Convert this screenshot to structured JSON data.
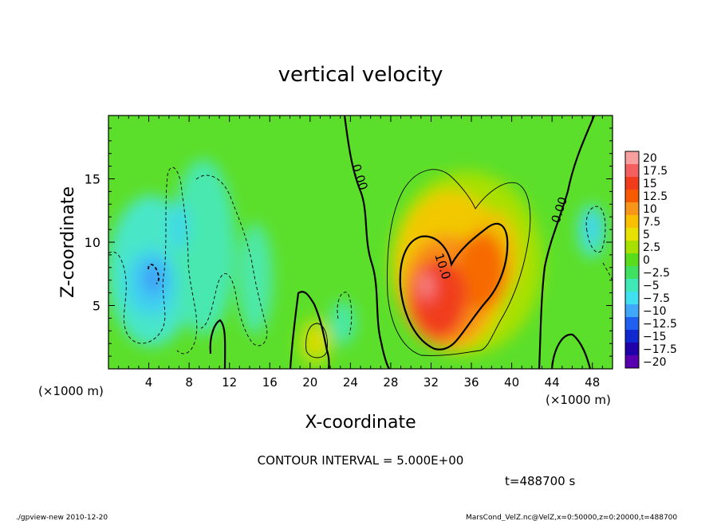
{
  "chart_data": {
    "type": "heatmap",
    "title": "vertical velocity",
    "xlabel": "X-coordinate",
    "ylabel": "Z-coordinate",
    "x_unit": "(×1000 m)",
    "x_unit_right": "(×1000 m)",
    "xlim": [
      0,
      50
    ],
    "ylim": [
      0,
      20
    ],
    "x_ticks": [
      "4",
      "8",
      "12",
      "16",
      "20",
      "24",
      "28",
      "32",
      "36",
      "40",
      "44",
      "48"
    ],
    "x_tick_values": [
      4,
      8,
      12,
      16,
      20,
      24,
      28,
      32,
      36,
      40,
      44,
      48
    ],
    "y_ticks": [
      "5",
      "10",
      "15"
    ],
    "y_tick_values": [
      5,
      10,
      15
    ],
    "contour_labels": [
      "0.00",
      "10.0",
      "0.00"
    ],
    "colorbar": {
      "labels": [
        "20",
        "17.5",
        "15",
        "12.5",
        "10",
        "7.5",
        "5",
        "2.5",
        "0",
        "−2.5",
        "−5",
        "−7.5",
        "−10",
        "−12.5",
        "−15",
        "−17.5",
        "−20"
      ],
      "colors": [
        "#f8a0a0",
        "#f46060",
        "#f03c1c",
        "#f85a00",
        "#f8961c",
        "#f8c000",
        "#e8e000",
        "#a8e000",
        "#58dc1c",
        "#40e060",
        "#40e8b8",
        "#40e0f0",
        "#40a8f8",
        "#2060f0",
        "#1028d0",
        "#2000a8",
        "#5800b0"
      ]
    },
    "features": [
      {
        "type": "updraft",
        "x": 33,
        "z": 7,
        "max": 17.5
      },
      {
        "type": "updraft",
        "x": 20.5,
        "z": 2.5,
        "max": 7.5
      },
      {
        "type": "downdraft",
        "x": 4.5,
        "z": 7.5,
        "min": -10
      },
      {
        "type": "downdraft",
        "x": 11,
        "z": 9,
        "min": -5
      },
      {
        "type": "downdraft",
        "x": 47.5,
        "z": 11,
        "min": -5
      }
    ],
    "contour_interval_text": "CONTOUR INTERVAL = 5.000E+00",
    "time_text": "t=488700  s",
    "footer_left": "./gpview-new   2010-12-20",
    "footer_right": "MarsCond_VelZ.nc@VelZ,x=0:50000,z=0:20000,t=488700"
  }
}
